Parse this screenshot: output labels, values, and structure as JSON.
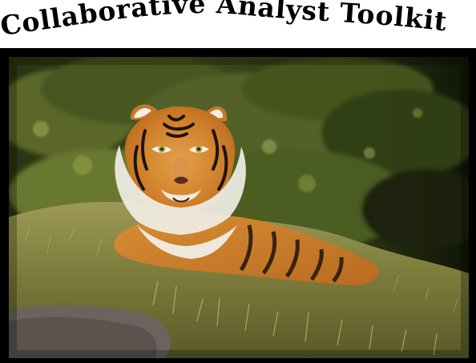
{
  "header": {
    "title": "Collaborative Analyst Toolkit"
  },
  "photo": {
    "subject": "tiger-photo",
    "colors": {
      "foliage_dark": "#1f2a10",
      "foliage_mid": "#4b5a22",
      "foliage_light": "#8a9a3a",
      "grass": "#7b7a3a",
      "grass_light": "#b8b06a",
      "tiger_orange": "#d98a2b",
      "tiger_dark": "#2a1a0e",
      "tiger_white": "#f1efe6",
      "rock": "#6c625c"
    }
  }
}
